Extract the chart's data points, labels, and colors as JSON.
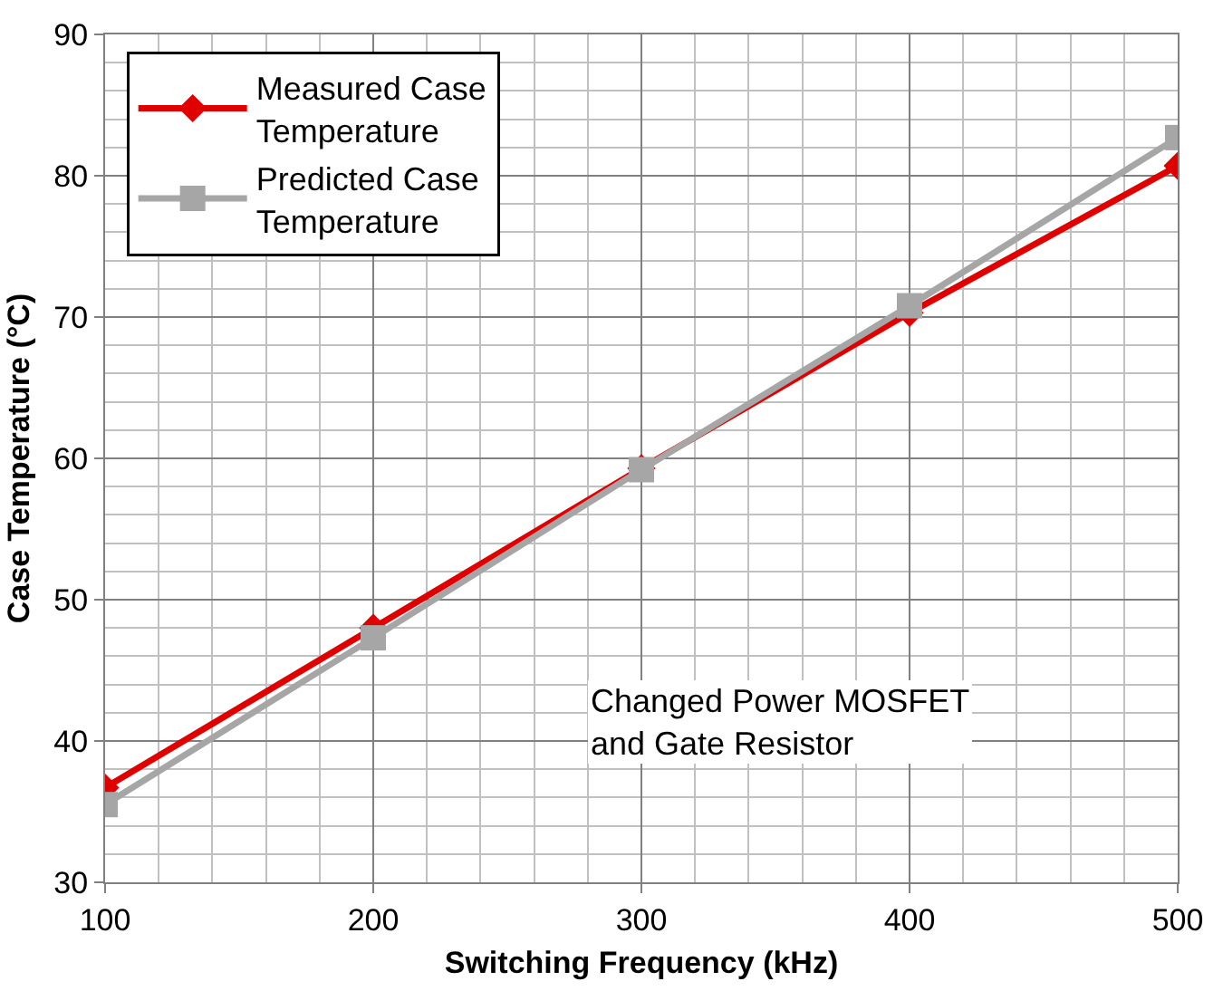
{
  "chart_data": {
    "type": "line",
    "xlabel": "Switching Frequency (kHz)",
    "ylabel": "Case Temperature (°C)",
    "x": [
      100,
      200,
      300,
      400,
      500
    ],
    "series": [
      {
        "name": "Measured Case\nTemperature",
        "color": "#e00000",
        "marker": "diamond",
        "values": [
          36.7,
          48.0,
          59.3,
          70.3,
          80.7
        ]
      },
      {
        "name": "Predicted Case\nTemperature",
        "color": "#a6a6a6",
        "marker": "square",
        "values": [
          35.5,
          47.3,
          59.2,
          70.8,
          82.7
        ]
      }
    ],
    "xlim": [
      100,
      500
    ],
    "xticks": [
      100,
      200,
      300,
      400,
      500
    ],
    "ylim": [
      30,
      90
    ],
    "yticks": [
      30,
      40,
      50,
      60,
      70,
      80,
      90
    ],
    "grid": true,
    "legend": "top left",
    "annotations": [
      "Changed Power MOSFET\nand Gate Resistor"
    ]
  }
}
